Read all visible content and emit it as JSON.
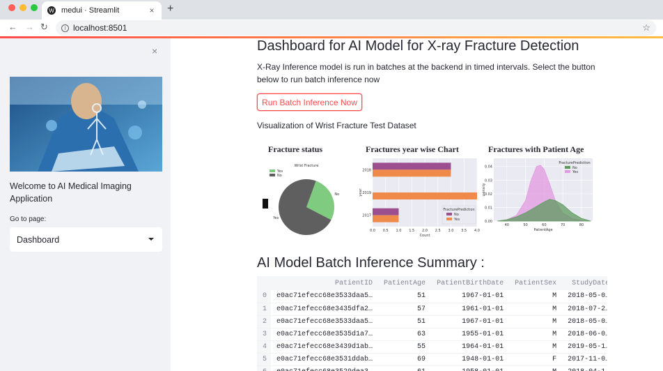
{
  "browser": {
    "tab_title": "medui · Streamlit",
    "favicon": "W",
    "url": "localhost:8501",
    "new_tab": "+",
    "close_tab": "×"
  },
  "sidebar": {
    "close": "×",
    "welcome": "Welcome to AI Medical Imaging Application",
    "goto_label": "Go to page:",
    "page_select": "Dashboard"
  },
  "main": {
    "title": "Dashboard for AI Model for X-ray Fracture Detection",
    "description": "X-Ray Inference model is run in batches at the backend in timed intervals. Select the button below to run batch inference now",
    "run_button": "Run Batch Inference Now",
    "viz_title": "Visualization of Wrist Fracture Test Dataset",
    "summary_title": "AI Model Batch Inference Summary :"
  },
  "chart_data": [
    {
      "type": "pie",
      "title": "Fracture  status",
      "subtitle": "Wrist Fracture",
      "labels": [
        "No",
        "Yes"
      ],
      "values": [
        27,
        73
      ],
      "colors": [
        "#7fcb7f",
        "#5f5f5f"
      ],
      "legend": [
        "Yes",
        "No"
      ],
      "legend_colors": [
        "#7fcb7f",
        "#5f5f5f"
      ],
      "legend_position": "top-left"
    },
    {
      "type": "bar",
      "orientation": "horizontal",
      "title": "Fractures year wise Chart",
      "ylabel": "year",
      "xlabel": "Count",
      "categories": [
        "2018",
        "2019",
        "2017"
      ],
      "series": [
        {
          "name": "No",
          "values": [
            3.0,
            0,
            1.0
          ],
          "color": "#9b4f8f"
        },
        {
          "name": "Yes",
          "values": [
            3.0,
            4.0,
            1.0
          ],
          "color": "#f08a4b"
        }
      ],
      "xlim": [
        0,
        4.0
      ],
      "xticks": [
        "0.0",
        "0.5",
        "1.0",
        "1.5",
        "2.0",
        "2.5",
        "3.0",
        "3.5",
        "4.0"
      ],
      "legend_title": "FracturePrediction",
      "legend_position": "lower-right",
      "grid": true
    },
    {
      "type": "area",
      "title": "Fractures with Patient Age",
      "xlabel": "PatientAge",
      "ylabel": "Density",
      "xticks": [
        "40",
        "50",
        "60",
        "70",
        "80"
      ],
      "yticks": [
        "0.00",
        "0.01",
        "0.02",
        "0.03",
        "0.04"
      ],
      "xlim": [
        33,
        86
      ],
      "ylim": [
        0,
        0.046
      ],
      "series": [
        {
          "name": "No",
          "color": "#5e9a5e",
          "x": [
            35,
            40,
            45,
            50,
            55,
            60,
            63,
            66,
            70,
            75,
            80,
            85
          ],
          "y": [
            0.0,
            0.001,
            0.003,
            0.006,
            0.01,
            0.014,
            0.016,
            0.015,
            0.012,
            0.006,
            0.002,
            0.0
          ]
        },
        {
          "name": "Yes",
          "color": "#e29ae0",
          "x": [
            35,
            40,
            45,
            50,
            53,
            56,
            58,
            60,
            63,
            66,
            70,
            75,
            80,
            85
          ],
          "y": [
            0.0,
            0.001,
            0.004,
            0.015,
            0.03,
            0.04,
            0.041,
            0.038,
            0.027,
            0.015,
            0.006,
            0.002,
            0.0005,
            0.0
          ]
        }
      ],
      "legend_title": "FracturePrediction",
      "legend": [
        "No",
        "Yes"
      ],
      "legend_position": "top-right",
      "grid": true
    }
  ],
  "table": {
    "columns": [
      "",
      "PatientID",
      "PatientAge",
      "PatientBirthDate",
      "PatientSex",
      "StudyDate"
    ],
    "rows": [
      [
        "0",
        "e0ac71efecc68e3533daa5…",
        "51",
        "1967-01-01",
        "M",
        "2018-05-0…"
      ],
      [
        "1",
        "e0ac71efecc68e3435dfa2…",
        "57",
        "1961-01-01",
        "M",
        "2018-07-2…"
      ],
      [
        "2",
        "e0ac71efecc68e3533daa5…",
        "51",
        "1967-01-01",
        "M",
        "2018-05-0…"
      ],
      [
        "3",
        "e0ac71efecc68e3535d1a7…",
        "63",
        "1955-01-01",
        "M",
        "2018-06-0…"
      ],
      [
        "4",
        "e0ac71efecc68e3439d1ab…",
        "55",
        "1964-01-01",
        "M",
        "2019-05-1…"
      ],
      [
        "5",
        "e0ac71efecc68e3531ddab…",
        "69",
        "1948-01-01",
        "F",
        "2017-11-0…"
      ],
      [
        "6",
        "e0ac71efecc68e3529dea3…",
        "61",
        "1958-01-01",
        "M",
        "2018-04-1…"
      ]
    ]
  }
}
